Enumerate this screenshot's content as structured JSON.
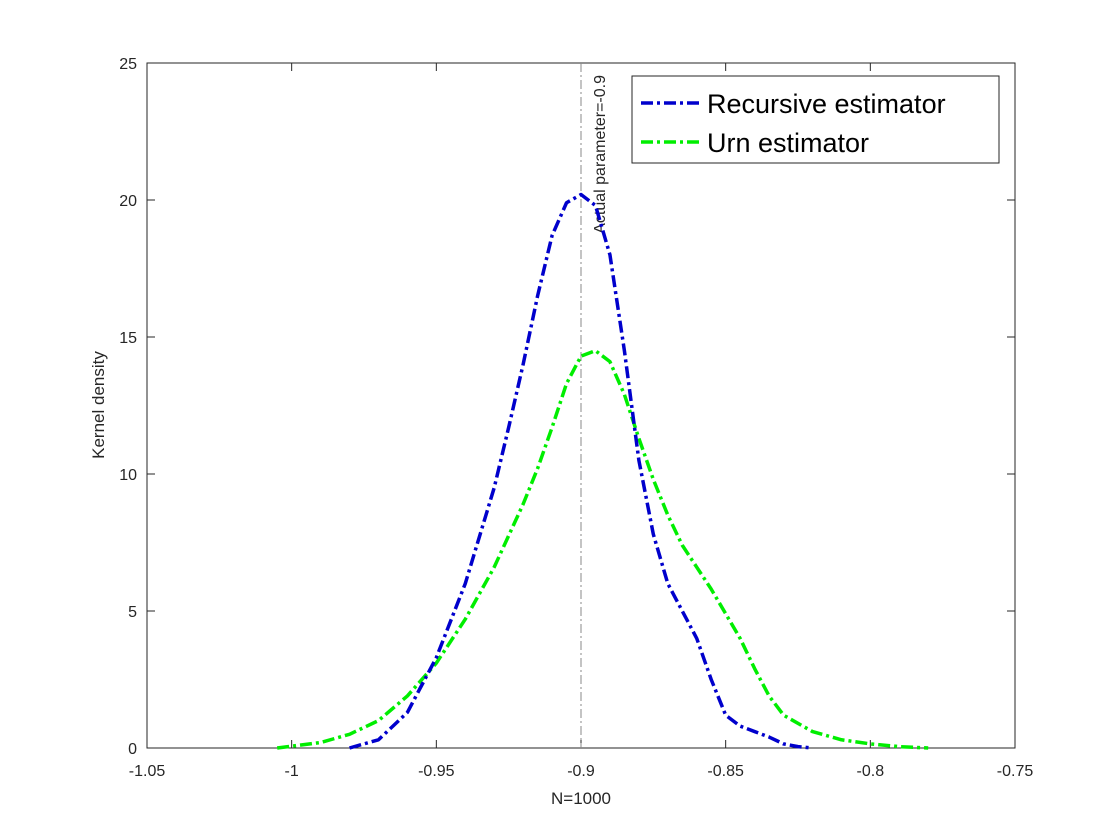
{
  "chart_data": {
    "type": "line",
    "xlabel": "N=1000",
    "ylabel": "Kernel density",
    "xlim": [
      -1.05,
      -0.75
    ],
    "ylim": [
      0,
      25
    ],
    "xticks": [
      -1.05,
      -1,
      -0.95,
      -0.9,
      -0.85,
      -0.8,
      -0.75
    ],
    "xtick_labels": [
      "-1.05",
      "-1",
      "-0.95",
      "-0.9",
      "-0.85",
      "-0.8",
      "-0.75"
    ],
    "yticks": [
      0,
      5,
      10,
      15,
      20,
      25
    ],
    "ytick_labels": [
      "0",
      "5",
      "10",
      "15",
      "20",
      "25"
    ],
    "grid": false,
    "legend_position": "top-right",
    "reference_line": {
      "x": -0.9,
      "label": "Actual parameter=-0.9",
      "color": "#888888"
    },
    "series": [
      {
        "name": "Recursive estimator",
        "color": "#0000cc",
        "style": "dash-dot",
        "x": [
          -0.98,
          -0.97,
          -0.96,
          -0.95,
          -0.94,
          -0.93,
          -0.925,
          -0.92,
          -0.915,
          -0.91,
          -0.905,
          -0.9,
          -0.895,
          -0.89,
          -0.885,
          -0.88,
          -0.875,
          -0.87,
          -0.865,
          -0.86,
          -0.855,
          -0.85,
          -0.845,
          -0.84,
          -0.835,
          -0.83,
          -0.825,
          -0.82
        ],
        "y": [
          0.0,
          0.3,
          1.3,
          3.3,
          6.0,
          9.5,
          11.7,
          14.0,
          16.5,
          18.7,
          19.9,
          20.2,
          19.8,
          18.0,
          14.5,
          10.5,
          7.8,
          6.0,
          5.0,
          4.0,
          2.5,
          1.2,
          0.8,
          0.6,
          0.4,
          0.15,
          0.05,
          0.0
        ]
      },
      {
        "name": "Urn estimator",
        "color": "#00ee00",
        "style": "dash-dot",
        "x": [
          -1.005,
          -0.99,
          -0.98,
          -0.97,
          -0.96,
          -0.95,
          -0.94,
          -0.93,
          -0.92,
          -0.915,
          -0.91,
          -0.905,
          -0.9,
          -0.895,
          -0.89,
          -0.885,
          -0.88,
          -0.875,
          -0.87,
          -0.865,
          -0.86,
          -0.855,
          -0.85,
          -0.845,
          -0.84,
          -0.835,
          -0.83,
          -0.82,
          -0.81,
          -0.8,
          -0.79,
          -0.78
        ],
        "y": [
          0.0,
          0.2,
          0.5,
          1.0,
          1.9,
          3.1,
          4.7,
          6.6,
          8.9,
          10.2,
          11.7,
          13.3,
          14.3,
          14.5,
          14.1,
          12.9,
          11.3,
          9.8,
          8.5,
          7.4,
          6.6,
          5.8,
          4.9,
          4.0,
          2.9,
          1.9,
          1.2,
          0.6,
          0.3,
          0.15,
          0.05,
          0.0
        ]
      }
    ]
  }
}
